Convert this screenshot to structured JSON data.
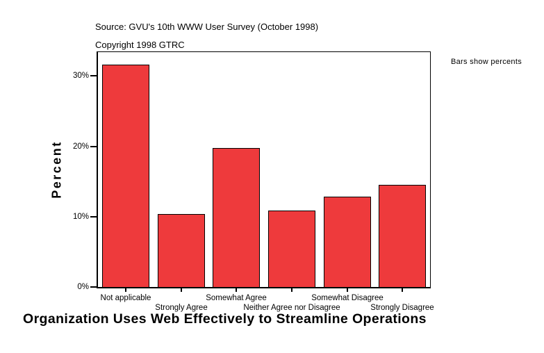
{
  "header": {
    "source_line": "Source: GVU's 10th WWW User Survey (October 1998)",
    "copyright_line": "Copyright 1998 GTRC"
  },
  "chart_data": {
    "type": "bar",
    "title": "Organization Uses Web Effectively to Streamline Operations",
    "ylabel": "Percent",
    "annotation": "Bars show percents",
    "categories": [
      "Not applicable",
      "Strongly Agree",
      "Somewhat Agree",
      "Neither Agree nor Disagree",
      "Somewhat Disagree",
      "Strongly Disagree"
    ],
    "values": [
      31.6,
      10.4,
      19.8,
      10.9,
      12.8,
      14.5
    ],
    "ytick_values": [
      0,
      10,
      20,
      30
    ],
    "ytick_labels": [
      "0%",
      "10%",
      "20%",
      "30%"
    ],
    "ylim": [
      0,
      33.4
    ],
    "grid": false,
    "legend_position": "none",
    "bar_color": "#EE3A3C",
    "bar_border_color": "#000000",
    "axis_color": "#000000",
    "background_color": "#FFFFFF"
  }
}
